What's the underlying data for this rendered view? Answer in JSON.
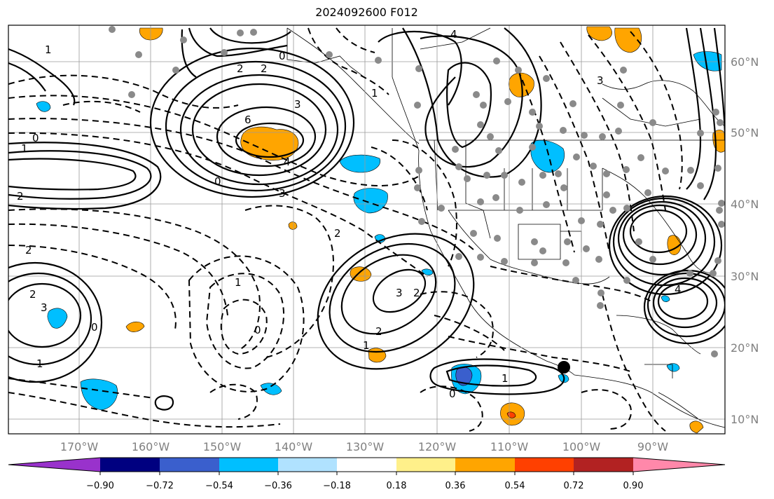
{
  "title": "2024092600 F012",
  "lon_ticks": [
    "170°W",
    "160°W",
    "150°W",
    "140°W",
    "130°W",
    "120°W",
    "110°W",
    "100°W",
    "90°W"
  ],
  "lat_ticks": [
    "60°N",
    "50°N",
    "40°N",
    "30°N",
    "20°N",
    "10°N"
  ],
  "colorbar": {
    "ticks": [
      "−0.90",
      "−0.72",
      "−0.54",
      "−0.36",
      "−0.18",
      "0.18",
      "0.36",
      "0.54",
      "0.72",
      "0.90"
    ],
    "colors": [
      "#9932cc",
      "#000080",
      "#3a5fcd",
      "#00bfff",
      "#b0e2ff",
      "#ffffff",
      "#fff08a",
      "#ffa500",
      "#ff4000",
      "#b22222",
      "#ff88aa"
    ]
  },
  "contour_labels": [
    {
      "text": "6"
    },
    {
      "text": "3"
    },
    {
      "text": "4"
    },
    {
      "text": "2"
    },
    {
      "text": "2"
    },
    {
      "text": "0"
    },
    {
      "text": "0"
    },
    {
      "text": "1"
    },
    {
      "text": "2"
    },
    {
      "text": "3"
    },
    {
      "text": "2"
    },
    {
      "text": "1"
    },
    {
      "text": "0"
    },
    {
      "text": "2"
    },
    {
      "text": "2"
    },
    {
      "text": "0"
    },
    {
      "text": "3"
    },
    {
      "text": "2"
    },
    {
      "text": "1"
    },
    {
      "text": "1"
    },
    {
      "text": "2"
    },
    {
      "text": "3"
    },
    {
      "text": "0"
    },
    {
      "text": "1"
    },
    {
      "text": "1"
    },
    {
      "text": "0"
    },
    {
      "text": "4"
    },
    {
      "text": "3"
    },
    {
      "text": "1"
    },
    {
      "text": "4"
    }
  ]
}
